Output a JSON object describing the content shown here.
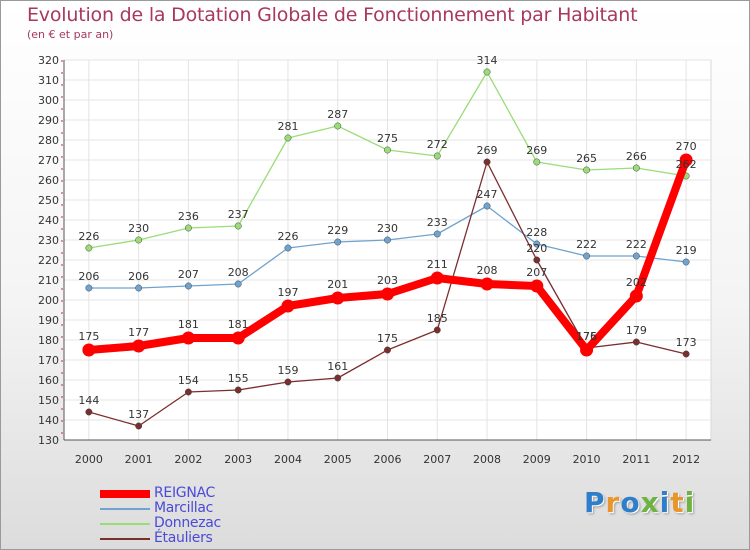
{
  "chart_data": {
    "type": "line",
    "title": "Evolution de la Dotation Globale de Fonctionnement par Habitant",
    "subtitle": "(en € et par an)",
    "x": [
      "2000",
      "2001",
      "2002",
      "2003",
      "2004",
      "2005",
      "2006",
      "2007",
      "2008",
      "2009",
      "2010",
      "2011",
      "2012"
    ],
    "ylim": [
      130,
      320
    ],
    "yticks": [
      130,
      140,
      150,
      160,
      170,
      180,
      190,
      200,
      210,
      220,
      230,
      240,
      250,
      260,
      270,
      280,
      290,
      300,
      310,
      320
    ],
    "grid": true,
    "legend_position": "bottom-left",
    "series": [
      {
        "name": "REIGNAC",
        "color": "#ff0000",
        "values": [
          175,
          177,
          181,
          181,
          197,
          201,
          203,
          211,
          208,
          207,
          175,
          202,
          270
        ],
        "labels": [
          "175",
          "177",
          "181",
          "181",
          "197",
          "201",
          "203",
          "211",
          "208",
          "207",
          "175",
          "202",
          "270"
        ]
      },
      {
        "name": "Marcillac",
        "color": "#6fa3d0",
        "values": [
          206,
          206,
          207,
          208,
          226,
          229,
          230,
          233,
          247,
          228,
          222,
          222,
          219
        ],
        "labels": [
          "206",
          "206",
          "207",
          "208",
          "226",
          "229",
          "230",
          "233",
          "247",
          "228",
          "222",
          "222",
          "219"
        ]
      },
      {
        "name": "Donnezac",
        "color": "#99dd77",
        "values": [
          226,
          230,
          236,
          237,
          281,
          287,
          275,
          272,
          314,
          269,
          265,
          266,
          262
        ],
        "labels": [
          "226",
          "230",
          "236",
          "237",
          "281",
          "287",
          "275",
          "272",
          "314",
          "269",
          "265",
          "266",
          "262"
        ]
      },
      {
        "name": "Étauliers",
        "color": "#7a2e2e",
        "values": [
          144,
          137,
          154,
          155,
          159,
          161,
          175,
          185,
          269,
          220,
          176,
          179,
          173
        ],
        "labels": [
          "144",
          "137",
          "154",
          "155",
          "159",
          "161",
          "175",
          "185",
          "269",
          "220",
          "176",
          "179",
          "173"
        ]
      }
    ]
  },
  "brand": {
    "letters": [
      "P",
      "r",
      "o",
      "x",
      "i",
      "t",
      "i"
    ]
  }
}
